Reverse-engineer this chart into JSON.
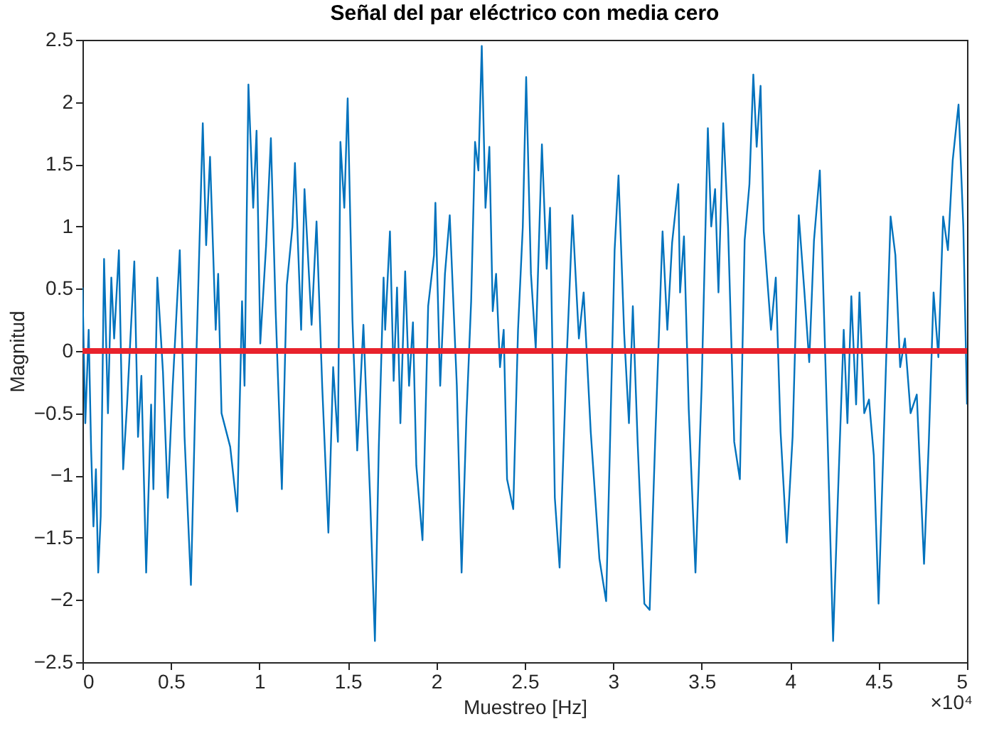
{
  "chart_data": {
    "type": "line",
    "title": "Señal del par eléctrico con media cero",
    "xlabel": "Muestreo [Hz]",
    "ylabel": "Magnitud",
    "xlim": [
      0,
      5
    ],
    "ylim": [
      -2.5,
      2.5
    ],
    "xticks": [
      0,
      0.5,
      1,
      1.5,
      2,
      2.5,
      3,
      3.5,
      4,
      4.5,
      5
    ],
    "yticks": [
      -2.5,
      -2,
      -1.5,
      -1,
      -0.5,
      0,
      0.5,
      1,
      1.5,
      2,
      2.5
    ],
    "grid": false,
    "marker": "none",
    "line_style": "solid",
    "annotations": [
      "×10⁴"
    ],
    "ref_lines": [
      {
        "axis": "y",
        "value": 0,
        "color": "#e8222c",
        "line_style": "solid"
      }
    ],
    "series": [
      {
        "color": "#0072bd",
        "x": [
          0,
          0.016,
          0.035,
          0.049,
          0.062,
          0.076,
          0.089,
          0.103,
          0.122,
          0.144,
          0.163,
          0.179,
          0.206,
          0.23,
          0.252,
          0.293,
          0.314,
          0.333,
          0.36,
          0.388,
          0.401,
          0.423,
          0.455,
          0.482,
          0.51,
          0.55,
          0.577,
          0.613,
          0.645,
          0.68,
          0.699,
          0.721,
          0.753,
          0.767,
          0.786,
          0.835,
          0.875,
          0.902,
          0.916,
          0.938,
          0.965,
          0.984,
          1.005,
          1.038,
          1.065,
          1.092,
          1.127,
          1.155,
          1.187,
          1.201,
          1.236,
          1.255,
          1.295,
          1.323,
          1.355,
          1.39,
          1.417,
          1.444,
          1.458,
          1.48,
          1.499,
          1.526,
          1.553,
          1.588,
          1.626,
          1.653,
          1.675,
          1.702,
          1.711,
          1.738,
          1.759,
          1.778,
          1.797,
          1.824,
          1.846,
          1.868,
          1.887,
          1.922,
          1.954,
          1.987,
          1.995,
          2.022,
          2.049,
          2.076,
          2.116,
          2.143,
          2.17,
          2.197,
          2.219,
          2.238,
          2.257,
          2.278,
          2.3,
          2.319,
          2.338,
          2.36,
          2.381,
          2.4,
          2.435,
          2.462,
          2.489,
          2.508,
          2.535,
          2.562,
          2.597,
          2.624,
          2.643,
          2.67,
          2.697,
          2.733,
          2.77,
          2.806,
          2.833,
          2.873,
          2.922,
          2.96,
          2.981,
          3.008,
          3.03,
          3.062,
          3.089,
          3.111,
          3.138,
          3.176,
          3.206,
          3.238,
          3.279,
          3.306,
          3.333,
          3.368,
          3.378,
          3.4,
          3.427,
          3.465,
          3.5,
          3.535,
          3.554,
          3.576,
          3.595,
          3.622,
          3.649,
          3.684,
          3.716,
          3.743,
          3.77,
          3.792,
          3.811,
          3.833,
          3.851,
          3.892,
          3.919,
          3.946,
          3.981,
          4.014,
          4.049,
          4.081,
          4.108,
          4.135,
          4.168,
          4.211,
          4.243,
          4.27,
          4.303,
          4.324,
          4.346,
          4.373,
          4.392,
          4.419,
          4.446,
          4.473,
          4.5,
          4.527,
          4.568,
          4.595,
          4.622,
          4.649,
          4.681,
          4.716,
          4.757,
          4.784,
          4.811,
          4.838,
          4.865,
          4.892,
          4.919,
          4.952,
          4.979,
          5
        ],
        "values": [
          0.51,
          -0.58,
          0.17,
          -0.8,
          -1.41,
          -0.95,
          -1.78,
          -1.33,
          0.74,
          -0.5,
          0.59,
          0.1,
          0.81,
          -0.95,
          -0.43,
          0.72,
          -0.69,
          -0.2,
          -1.78,
          -0.43,
          -1.11,
          0.59,
          -0.17,
          -1.18,
          -0.28,
          0.81,
          -0.69,
          -1.88,
          0.02,
          1.83,
          0.85,
          1.56,
          0.17,
          0.62,
          -0.5,
          -0.77,
          -1.29,
          0.4,
          -0.28,
          2.14,
          1.15,
          1.77,
          0.06,
          0.85,
          1.71,
          0.32,
          -1.11,
          0.53,
          1.0,
          1.51,
          0.17,
          1.3,
          0.21,
          1.04,
          -0.28,
          -1.46,
          -0.13,
          -0.73,
          1.68,
          1.15,
          2.03,
          0.25,
          -0.8,
          0.21,
          -1.18,
          -2.33,
          -0.77,
          0.59,
          0.17,
          0.96,
          -0.24,
          0.51,
          -0.58,
          0.64,
          -0.28,
          0.23,
          -0.92,
          -1.52,
          0.36,
          0.77,
          1.19,
          -0.28,
          0.62,
          1.09,
          -0.28,
          -1.78,
          -0.54,
          0.4,
          1.68,
          1.45,
          2.45,
          1.15,
          1.64,
          0.32,
          0.62,
          -0.13,
          0.17,
          -1.03,
          -1.27,
          0.17,
          1.0,
          2.2,
          0.62,
          0.02,
          1.66,
          0.66,
          1.15,
          -1.18,
          -1.74,
          -0.2,
          1.09,
          0.1,
          0.47,
          -0.65,
          -1.67,
          -2.01,
          -0.8,
          0.81,
          1.41,
          0.14,
          -0.58,
          0.36,
          -0.73,
          -2.03,
          -2.08,
          -0.69,
          0.96,
          0.17,
          0.87,
          1.34,
          0.47,
          0.92,
          -0.47,
          -1.78,
          -0.28,
          1.79,
          1.0,
          1.3,
          0.47,
          1.83,
          1.0,
          -0.73,
          -1.03,
          0.89,
          1.34,
          2.22,
          1.64,
          2.13,
          0.96,
          0.17,
          0.59,
          -0.65,
          -1.54,
          -0.69,
          1.09,
          0.47,
          -0.09,
          0.89,
          1.45,
          -0.65,
          -2.33,
          -1.18,
          0.17,
          -0.58,
          0.44,
          -0.43,
          0.47,
          -0.5,
          -0.39,
          -0.84,
          -2.03,
          -0.8,
          1.08,
          0.77,
          -0.13,
          0.1,
          -0.5,
          -0.35,
          -1.71,
          -0.73,
          0.47,
          -0.05,
          1.08,
          0.81,
          1.53,
          1.98,
          1.0,
          -0.43
        ]
      }
    ]
  }
}
